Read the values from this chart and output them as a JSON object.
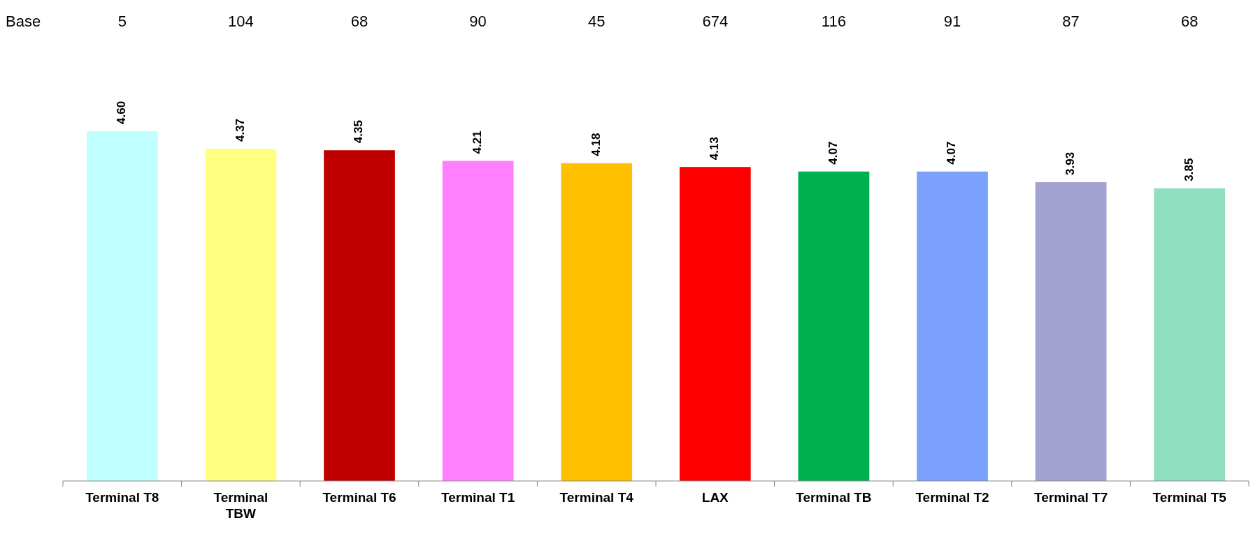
{
  "chart_data": {
    "type": "bar",
    "categories": [
      "Terminal T8",
      "Terminal TBW",
      "Terminal T6",
      "Terminal T1",
      "Terminal T4",
      "LAX",
      "Terminal TB",
      "Terminal T2",
      "Terminal T7",
      "Terminal T5"
    ],
    "values": [
      4.6,
      4.37,
      4.35,
      4.21,
      4.18,
      4.13,
      4.07,
      4.07,
      3.93,
      3.85
    ],
    "colors": [
      "#c0ffff",
      "#ffff80",
      "#c00000",
      "#ff80ff",
      "#ffc000",
      "#ff0000",
      "#00b050",
      "#7aa2fc",
      "#a2a2d0",
      "#8fdfc0"
    ],
    "value_labels": [
      "4.60",
      "4.37",
      "4.35",
      "4.21",
      "4.18",
      "4.13",
      "4.07",
      "4.07",
      "3.93",
      "3.85"
    ],
    "data_labels": true,
    "tick_labels": "x",
    "annotations": [
      "Base",
      "5",
      "104",
      "68",
      "90",
      "45",
      "674",
      "116",
      "91",
      "87",
      "68"
    ]
  }
}
